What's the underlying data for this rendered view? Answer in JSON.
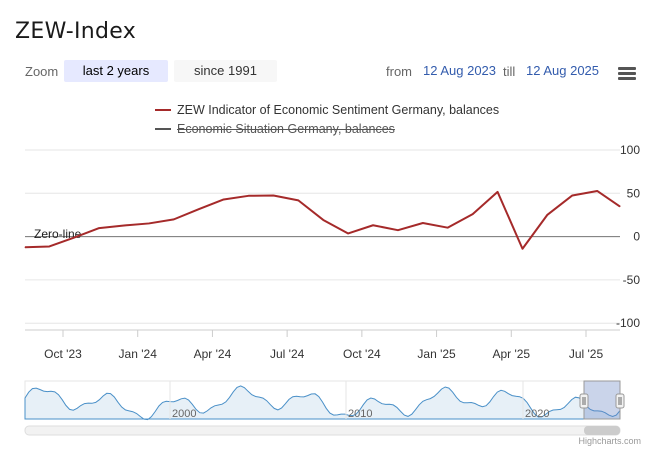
{
  "title": "ZEW-Index",
  "toolbar": {
    "zoom_label": "Zoom",
    "zoom_buttons": [
      "last 2 years",
      "since 1991"
    ],
    "active_zoom": "last 2 years",
    "from_label": "from",
    "from_value": "12 Aug 2023",
    "till_label": "till",
    "till_value": "12 Aug 2025"
  },
  "legend": [
    {
      "label": "ZEW Indicator of Economic Sentiment Germany, balances",
      "color": "#a52a2a",
      "visible": true
    },
    {
      "label": "Economic Situation Germany, balances",
      "color": "#555555",
      "visible": false
    }
  ],
  "annotation": "Zero-line",
  "credits": "Highcharts.com",
  "chart_data": {
    "type": "line",
    "ylim": [
      -100,
      100
    ],
    "y_ticks": [
      100,
      50,
      0,
      -50,
      -100
    ],
    "x_ticks": [
      "Oct '23",
      "Jan '24",
      "Apr '24",
      "Jul '24",
      "Oct '24",
      "Jan '25",
      "Apr '25",
      "Jul '25"
    ],
    "grid": true,
    "legend_position": "top",
    "zero_line": 0,
    "series": [
      {
        "name": "ZEW Indicator of Economic Sentiment Germany, balances",
        "color": "#a52a2a",
        "x": [
          "2023-08",
          "2023-09",
          "2023-10",
          "2023-11",
          "2023-12",
          "2024-01",
          "2024-02",
          "2024-03",
          "2024-04",
          "2024-05",
          "2024-06",
          "2024-07",
          "2024-08",
          "2024-09",
          "2024-10",
          "2024-11",
          "2024-12",
          "2025-01",
          "2025-02",
          "2025-03",
          "2025-04",
          "2025-05",
          "2025-06",
          "2025-07",
          "2025-08"
        ],
        "values": [
          -12.3,
          -11.4,
          -1.1,
          9.8,
          12.8,
          15.2,
          19.9,
          31.7,
          42.9,
          47.1,
          47.5,
          41.8,
          19.2,
          3.6,
          13.1,
          7.4,
          15.7,
          10.3,
          26.0,
          51.6,
          -14.0,
          25.2,
          47.5,
          52.7,
          34.7
        ]
      }
    ],
    "navigator": {
      "x_ticks": [
        "2000",
        "2010",
        "2020"
      ],
      "selected_range": [
        "2023-08",
        "2025-08"
      ]
    }
  }
}
